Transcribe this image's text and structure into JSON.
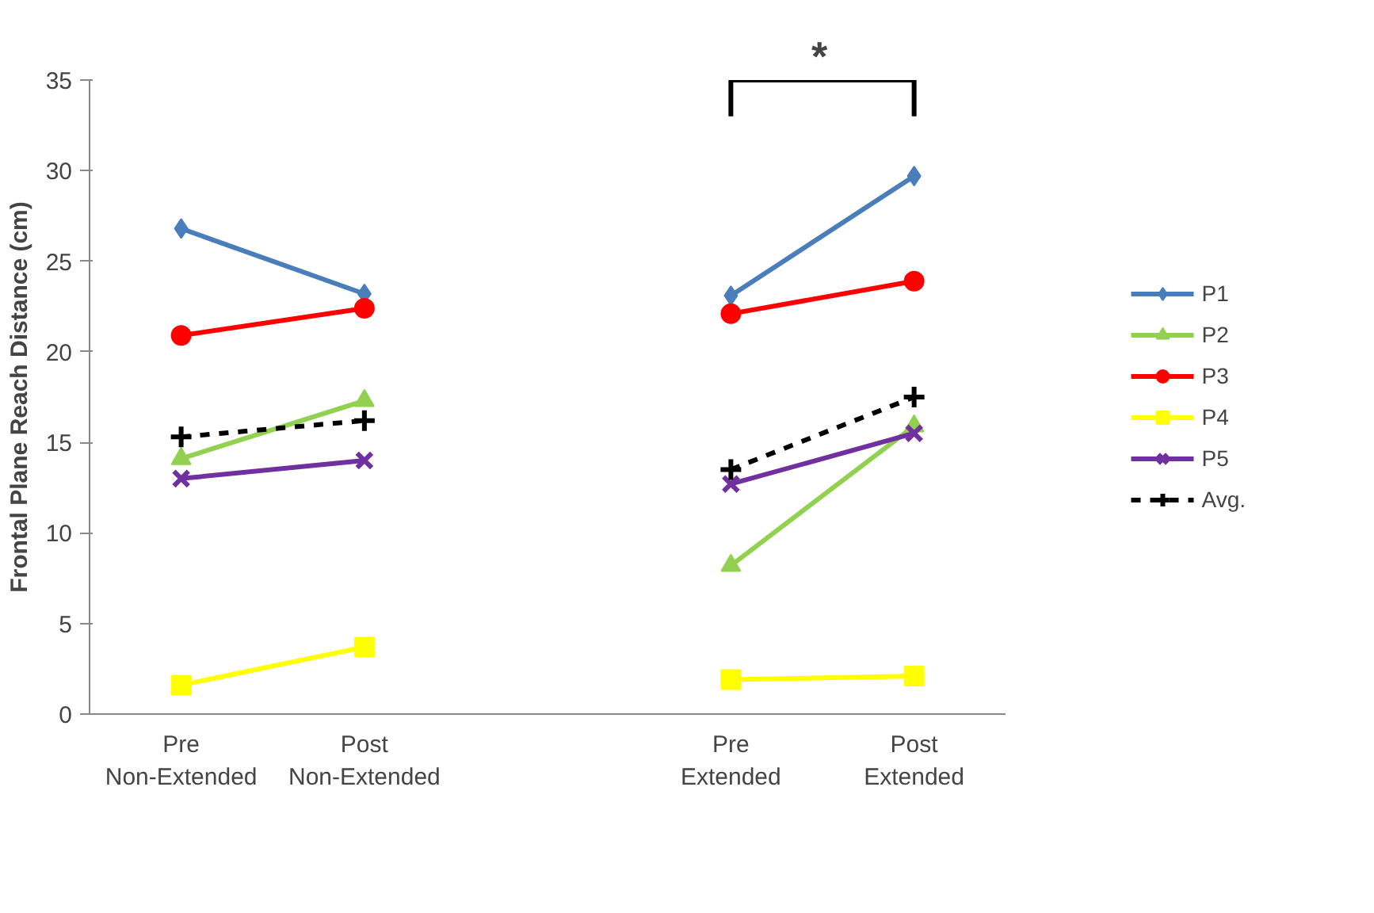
{
  "chart_data": {
    "type": "line",
    "ylabel": "Frontal Plane Reach Distance (cm)",
    "categories": [
      "Pre\nNon-Extended",
      "Post\nNon-Extended",
      null,
      "Pre\nExtended",
      "Post\nExtended"
    ],
    "ylim": [
      0,
      35
    ],
    "yticks": [
      0,
      5,
      10,
      15,
      20,
      25,
      30,
      35
    ],
    "series": [
      {
        "name": "P1",
        "color": "#4a7ebb",
        "marker": "diamond",
        "values": [
          26.8,
          23.2,
          null,
          23.1,
          29.7
        ]
      },
      {
        "name": "P2",
        "color": "#92d050",
        "marker": "triangle",
        "values": [
          14.1,
          17.3,
          null,
          8.2,
          15.9
        ]
      },
      {
        "name": "P3",
        "color": "#ff0000",
        "marker": "circle",
        "values": [
          20.9,
          22.4,
          null,
          22.1,
          23.9
        ]
      },
      {
        "name": "P4",
        "color": "#ffff00",
        "marker": "square",
        "values": [
          1.6,
          3.7,
          null,
          1.9,
          2.1
        ]
      },
      {
        "name": "P5",
        "color": "#7030a0",
        "marker": "x",
        "values": [
          13.0,
          14.0,
          null,
          12.7,
          15.5
        ]
      },
      {
        "name": "Avg.",
        "color": "#000000",
        "marker": "cross",
        "line_style": "dashed",
        "values": [
          15.3,
          16.2,
          null,
          13.5,
          17.5
        ]
      }
    ],
    "annotations": [
      "*"
    ],
    "grid": false,
    "legend": "right"
  }
}
